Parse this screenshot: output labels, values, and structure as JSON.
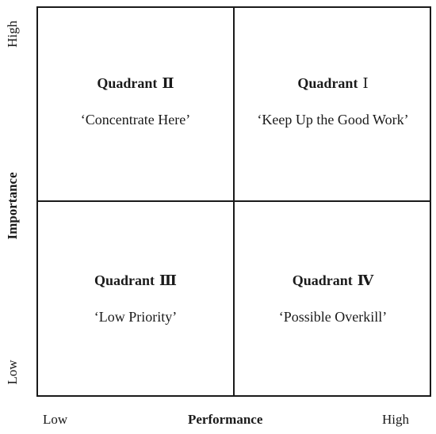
{
  "quadrants": {
    "q2": {
      "title": "Quadrant",
      "numeral": "Ⅱ",
      "subtitle": "‘Concentrate Here’"
    },
    "q1": {
      "title": "Quadrant",
      "numeral": "Ⅰ",
      "subtitle": "‘Keep Up the Good Work’"
    },
    "q3": {
      "title": "Quadrant",
      "numeral": "Ⅲ",
      "subtitle": "‘Low Priority’"
    },
    "q4": {
      "title": "Quadrant",
      "numeral": "Ⅳ",
      "subtitle": "‘Possible Overkill’"
    }
  },
  "x_axis": {
    "title": "Performance",
    "low": "Low",
    "high": "High"
  },
  "y_axis": {
    "title": "Importance",
    "low": "Low",
    "high": "High"
  }
}
